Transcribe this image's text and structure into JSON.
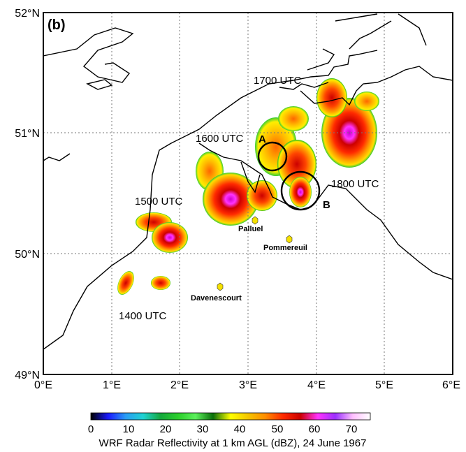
{
  "panel_label": "(b)",
  "axes": {
    "lon_ticks": [
      "0°E",
      "1°E",
      "2°E",
      "3°E",
      "4°E",
      "5°E",
      "6°E"
    ],
    "lat_ticks": [
      "52°N",
      "51°N",
      "50°N",
      "49°N"
    ]
  },
  "time_labels": [
    "1400 UTC",
    "1500 UTC",
    "1600 UTC",
    "1700 UTC",
    "1800 UTC"
  ],
  "circles": [
    {
      "label": "A",
      "lon": 3.3,
      "lat": 50.82
    },
    {
      "label": "B",
      "lon": 3.78,
      "lat": 50.5
    }
  ],
  "towns": [
    {
      "name": "Palluel",
      "lon": 3.1,
      "lat": 50.27
    },
    {
      "name": "Pommereuil",
      "lon": 3.6,
      "lat": 50.12
    },
    {
      "name": "Davenescourt",
      "lon": 2.57,
      "lat": 49.72
    }
  ],
  "colorbar": {
    "ticks": [
      "0",
      "10",
      "20",
      "30",
      "40",
      "50",
      "60",
      "70"
    ],
    "title": "WRF Radar Reflectivity at 1 km AGL (dBZ), 24 June 1967",
    "colors": [
      "#000000",
      "#1a1aff",
      "#2a9df4",
      "#1fd2d2",
      "#14a83c",
      "#2ccf2c",
      "#5cf05c",
      "#0a6e0a",
      "#ffff00",
      "#f5c600",
      "#ff8c00",
      "#ff2a00",
      "#cc0000",
      "#ff33ff",
      "#9b30ff",
      "#ffc0ff",
      "#ffffff"
    ]
  },
  "colors": {
    "frame": "#000000",
    "coast": "#000000",
    "grid": "#777777",
    "town_marker": "#f5e000"
  }
}
